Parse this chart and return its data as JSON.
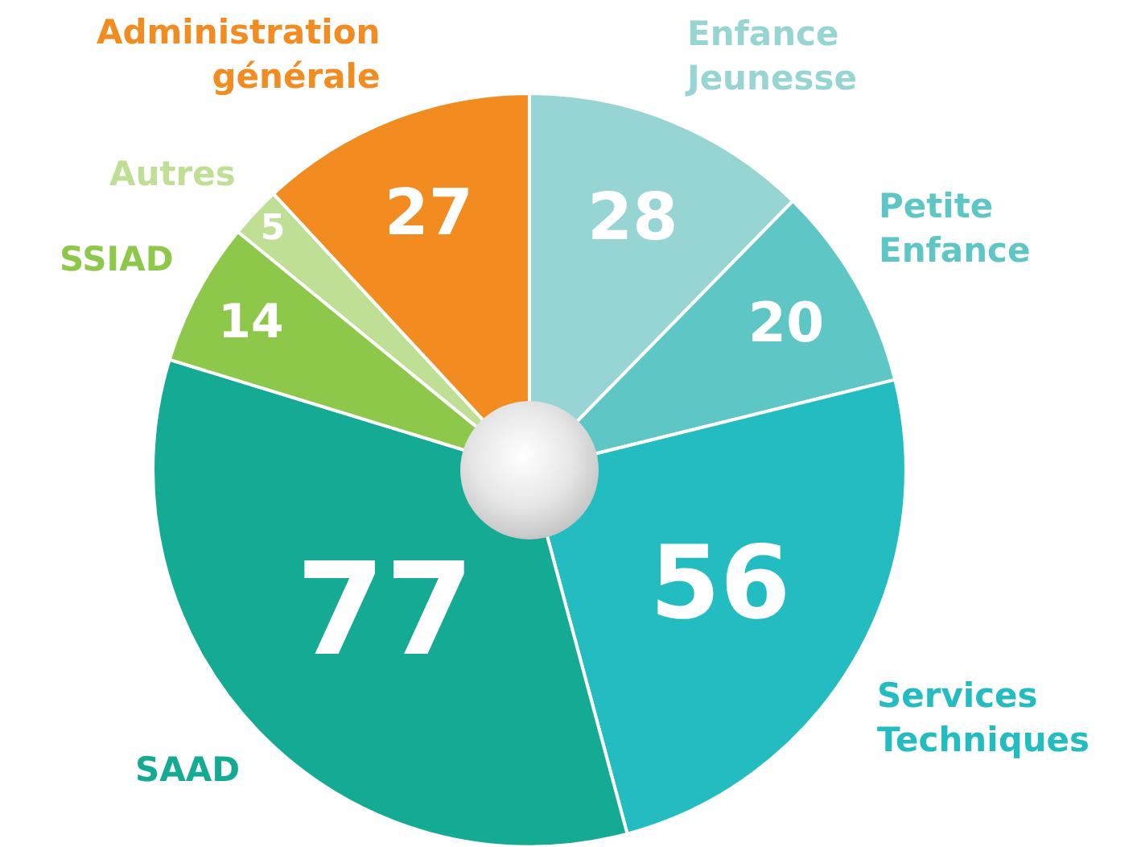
{
  "chart_data": {
    "type": "pie",
    "categories": [
      "Enfance Jeunesse",
      "Petite Enfance",
      "Services Techniques",
      "SAAD",
      "SSIAD",
      "Autres",
      "Administration générale"
    ],
    "values": [
      28,
      20,
      56,
      77,
      14,
      5,
      27
    ],
    "colors": [
      "#96d5d3",
      "#5ec7c5",
      "#22bcc1",
      "#15aa94",
      "#8dc84a",
      "#bedf94",
      "#f28c20"
    ],
    "data_labels": true,
    "legend": false
  }
}
